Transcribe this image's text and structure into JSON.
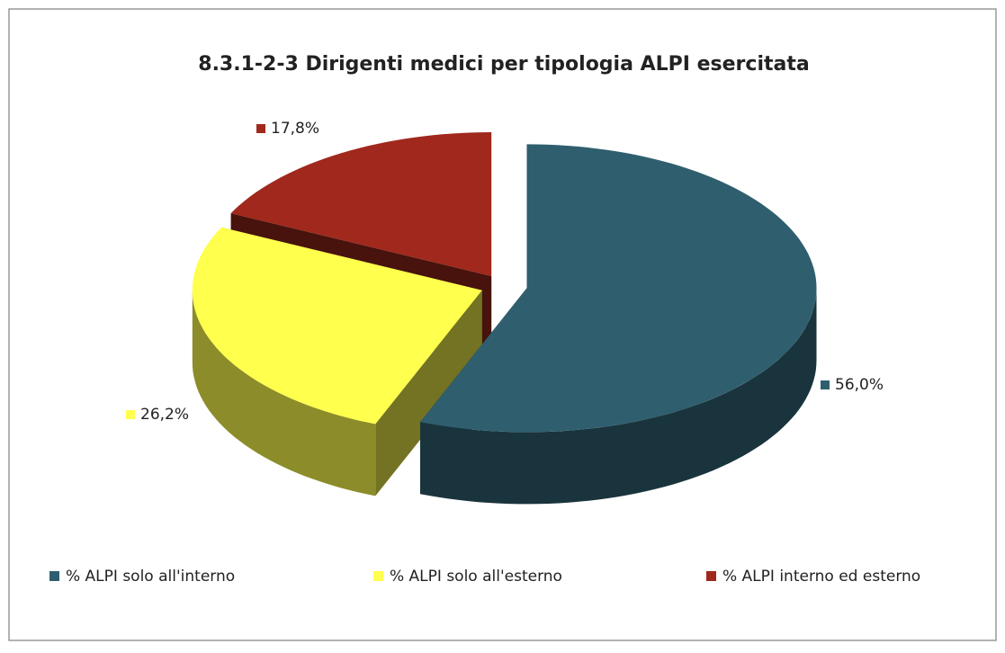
{
  "chart_data": {
    "type": "pie3d",
    "title": "8.3.1-2-3 Dirigenti medici per tipologia ALPI esercitata",
    "categories": [
      "% ALPI solo all'interno",
      "% ALPI solo all'esterno",
      "% ALPI interno ed esterno"
    ],
    "values": [
      56.0,
      26.2,
      17.8
    ],
    "value_labels": [
      "56,0%",
      "26,2%",
      "17,8%"
    ],
    "colors": [
      "#2f5f6e",
      "#ffff4d",
      "#a0281c"
    ],
    "legend": "bottom"
  }
}
